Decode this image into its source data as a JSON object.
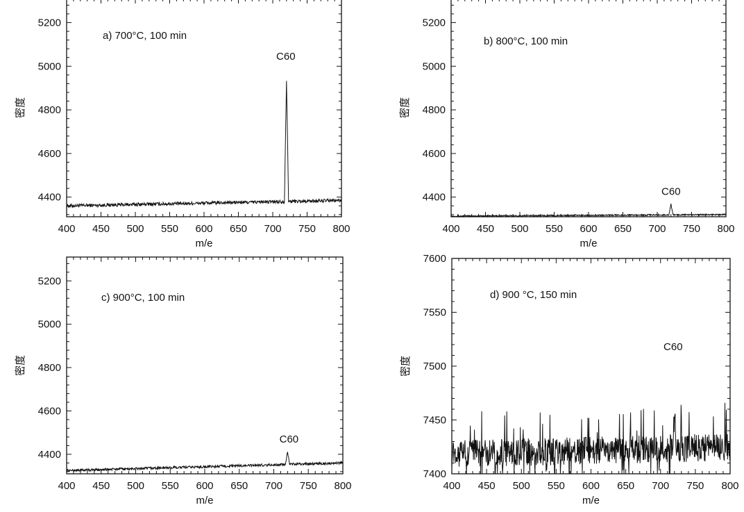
{
  "chart_data": [
    {
      "type": "line",
      "title": "a)  700°C, 100 min",
      "xlabel": "m/e",
      "ylabel": "密度",
      "xlim": [
        400,
        800
      ],
      "ylim": [
        4310,
        5310
      ],
      "xticks": [
        400,
        450,
        500,
        550,
        600,
        650,
        700,
        750,
        800
      ],
      "yticks": [
        4400,
        4600,
        4800,
        5000,
        5200
      ],
      "grid": false,
      "baseline": [
        [
          400,
          4360
        ],
        [
          800,
          4385
        ]
      ],
      "noise": 8,
      "peak": {
        "x": 720,
        "y": 4950,
        "label": "C60"
      },
      "annotation": {
        "text": "C60",
        "x": 719,
        "y": 5030
      }
    },
    {
      "type": "line",
      "title": "b)  800°C, 100 min",
      "xlabel": "m/e",
      "ylabel": "密度",
      "xlim": [
        400,
        800
      ],
      "ylim": [
        4310,
        5310
      ],
      "xticks": [
        400,
        450,
        500,
        550,
        600,
        650,
        700,
        750,
        800
      ],
      "yticks": [
        4400,
        4600,
        4800,
        5000,
        5200
      ],
      "grid": false,
      "baseline": [
        [
          400,
          4313
        ],
        [
          800,
          4320
        ]
      ],
      "noise": 3,
      "peak": {
        "x": 720,
        "y": 4365,
        "label": "C60"
      },
      "annotation": {
        "text": "C60",
        "x": 720,
        "y": 4410
      }
    },
    {
      "type": "line",
      "title": "c)  900°C, 100 min",
      "xlabel": "m/e",
      "ylabel": "密度",
      "xlim": [
        400,
        800
      ],
      "ylim": [
        4310,
        5310
      ],
      "xticks": [
        400,
        450,
        500,
        550,
        600,
        650,
        700,
        750,
        800
      ],
      "yticks": [
        4400,
        4600,
        4800,
        5000,
        5200
      ],
      "grid": false,
      "baseline": [
        [
          400,
          4325
        ],
        [
          800,
          4360
        ]
      ],
      "noise": 6,
      "peak": {
        "x": 720,
        "y": 4385,
        "label": "C60"
      },
      "annotation": {
        "text": "C60",
        "x": 722,
        "y": 4455
      }
    },
    {
      "type": "line",
      "title": "d)  900 °C, 150 min",
      "xlabel": "m/e",
      "ylabel": "密度",
      "xlim": [
        400,
        800
      ],
      "ylim": [
        7400,
        7600
      ],
      "xticks": [
        400,
        450,
        500,
        550,
        600,
        650,
        700,
        750,
        800
      ],
      "yticks": [
        7400,
        7450,
        7500,
        7550,
        7600
      ],
      "grid": false,
      "baseline": [
        [
          400,
          7418
        ],
        [
          800,
          7425
        ]
      ],
      "noise": 13,
      "peak": {
        "x": 720,
        "y": 7460,
        "label": "C60"
      },
      "annotation": {
        "text": "C60",
        "x": 718,
        "y": 7515
      }
    }
  ]
}
